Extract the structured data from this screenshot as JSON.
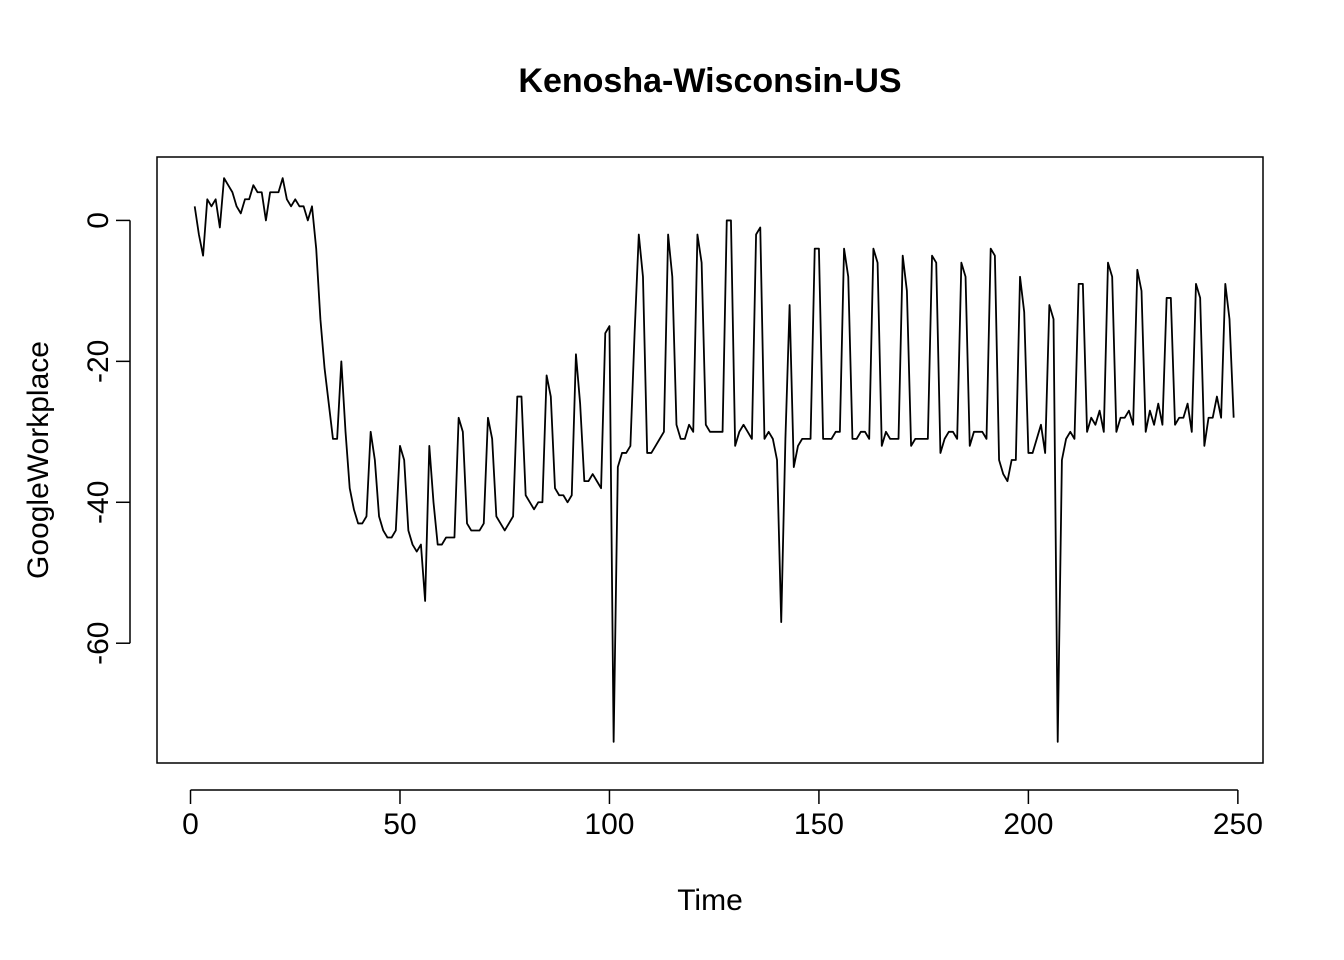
{
  "chart_data": {
    "type": "line",
    "title": "Kenosha-Wisconsin-US",
    "xlabel": "Time",
    "ylabel": "GoogleWorkplace",
    "xlim": [
      -8,
      256
    ],
    "ylim": [
      -77,
      9
    ],
    "x_ticks": [
      0,
      50,
      100,
      150,
      200,
      250
    ],
    "y_ticks": [
      0,
      -20,
      -40,
      -60
    ],
    "x_tick_labels": [
      "0",
      "50",
      "100",
      "150",
      "200",
      "250"
    ],
    "y_tick_labels": [
      "0",
      "-20",
      "-40",
      "-60"
    ],
    "grid": false,
    "line_color": "#000000",
    "series": [
      {
        "x_start": 1,
        "values": [
          2,
          -2,
          -5,
          3,
          2,
          3,
          -1,
          6,
          5,
          4,
          2,
          1,
          3,
          3,
          5,
          4,
          4,
          0,
          4,
          4,
          4,
          6,
          3,
          2,
          3,
          2,
          2,
          0,
          2,
          -4,
          -14,
          -21,
          -26,
          -31,
          -31,
          -20,
          -30,
          -38,
          -41,
          -43,
          -43,
          -42,
          -30,
          -34,
          -42,
          -44,
          -45,
          -45,
          -44,
          -32,
          -34,
          -44,
          -46,
          -47,
          -46,
          -54,
          -32,
          -40,
          -46,
          -46,
          -45,
          -45,
          -45,
          -28,
          -30,
          -43,
          -44,
          -44,
          -44,
          -43,
          -28,
          -31,
          -42,
          -43,
          -44,
          -43,
          -42,
          -25,
          -25,
          -39,
          -40,
          -41,
          -40,
          -40,
          -22,
          -25,
          -38,
          -39,
          -39,
          -40,
          -39,
          -19,
          -26,
          -37,
          -37,
          -36,
          -37,
          -38,
          -16,
          -15,
          -74,
          -35,
          -33,
          -33,
          -32,
          -16,
          -2,
          -8,
          -33,
          -33,
          -32,
          -31,
          -30,
          -2,
          -8,
          -29,
          -31,
          -31,
          -29,
          -30,
          -2,
          -6,
          -29,
          -30,
          -30,
          -30,
          -30,
          0,
          0,
          -32,
          -30,
          -29,
          -30,
          -31,
          -2,
          -1,
          -31,
          -30,
          -31,
          -34,
          -57,
          -31,
          -12,
          -35,
          -32,
          -31,
          -31,
          -31,
          -4,
          -4,
          -31,
          -31,
          -31,
          -30,
          -30,
          -4,
          -8,
          -31,
          -31,
          -30,
          -30,
          -31,
          -4,
          -6,
          -32,
          -30,
          -31,
          -31,
          -31,
          -5,
          -10,
          -32,
          -31,
          -31,
          -31,
          -31,
          -5,
          -6,
          -33,
          -31,
          -30,
          -30,
          -31,
          -6,
          -8,
          -32,
          -30,
          -30,
          -30,
          -31,
          -4,
          -5,
          -34,
          -36,
          -37,
          -34,
          -34,
          -8,
          -13,
          -33,
          -33,
          -31,
          -29,
          -33,
          -12,
          -14,
          -74,
          -34,
          -31,
          -30,
          -31,
          -9,
          -9,
          -30,
          -28,
          -29,
          -27,
          -30,
          -6,
          -8,
          -30,
          -28,
          -28,
          -27,
          -29,
          -7,
          -10,
          -30,
          -27,
          -29,
          -26,
          -29,
          -11,
          -11,
          -29,
          -28,
          -28,
          -26,
          -30,
          -9,
          -11,
          -32,
          -28,
          -28,
          -25,
          -28,
          -9,
          -14,
          -28
        ]
      }
    ]
  }
}
